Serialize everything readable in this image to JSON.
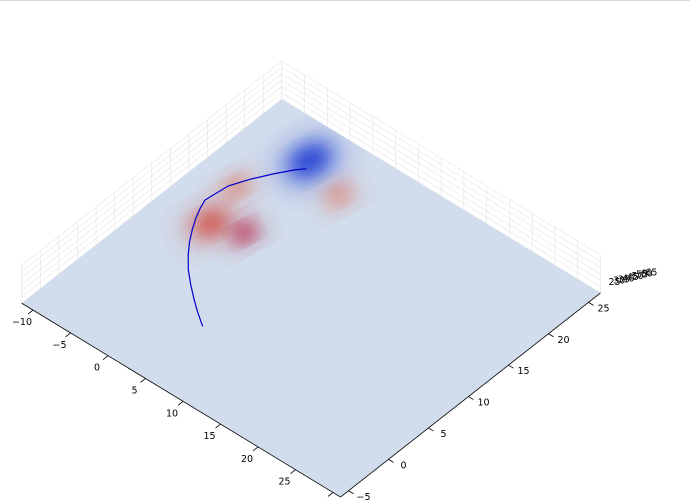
{
  "chart_data": {
    "type": "surface3d",
    "x_axis": {
      "ticks": [
        -10,
        -5,
        0,
        5,
        10,
        15,
        20,
        25,
        30
      ],
      "range": [
        -11.5,
        31
      ]
    },
    "y_axis": {
      "ticks": [
        -5,
        0,
        5,
        10,
        15,
        20,
        25
      ],
      "range": [
        -6,
        26.5
      ],
      "far_labels_overlapping": [
        "25",
        "30",
        "35",
        "40",
        "45",
        "50",
        "55",
        "60",
        "65"
      ]
    },
    "colormap": "coolwarm",
    "background_surface_color": "#d1dcec",
    "surface_features": [
      {
        "kind": "depression",
        "x": -3.5,
        "y": 22.5,
        "amplitude": -1.0,
        "sigma": 3.0,
        "color": "#1f3ad2"
      },
      {
        "kind": "peak",
        "x": -6.5,
        "y": 16.2,
        "amplitude": 0.55,
        "sigma": 1.6,
        "color": "#e0654d"
      },
      {
        "kind": "peak",
        "x": 2.0,
        "y": 21.0,
        "amplitude": 0.55,
        "sigma": 1.6,
        "color": "#e0654d"
      },
      {
        "kind": "peak",
        "x": -5.0,
        "y": 11.5,
        "amplitude": 0.85,
        "sigma": 2.4,
        "color": "#d34437"
      },
      {
        "kind": "peak",
        "x": -1.5,
        "y": 12.5,
        "amplitude": 1.0,
        "sigma": 1.6,
        "color": "#b40426"
      }
    ],
    "path": {
      "color": "#0000cc",
      "x": [
        -3.0,
        -3.8,
        -5.0,
        -6.2,
        -7.2,
        -7.5,
        -7.6,
        -7.5,
        -7.2,
        -6.6,
        -5.8,
        -4.8,
        -3.6,
        -2.2,
        -0.6,
        1.0,
        2.4,
        3.6,
        4.3
      ],
      "y": [
        21.6,
        20.8,
        19.3,
        17.6,
        15.8,
        14.0,
        13.2,
        13.0,
        12.3,
        11.2,
        10.0,
        8.7,
        7.4,
        6.1,
        4.9,
        3.8,
        2.9,
        2.2,
        1.8
      ]
    }
  }
}
